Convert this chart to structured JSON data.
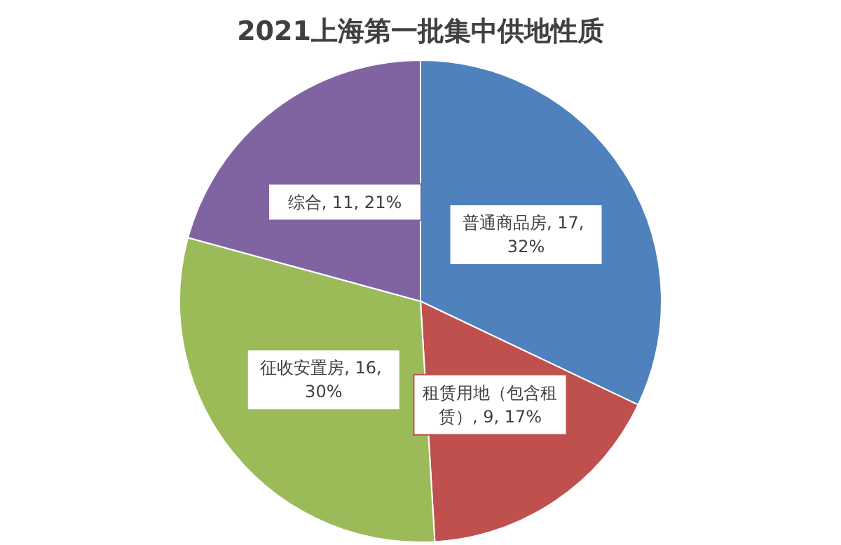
{
  "chart_data": {
    "type": "pie",
    "title": "2021上海第一批集中供地性质",
    "categories": [
      "普通商品房",
      "租赁用地（包含租赁）",
      "征收安置房",
      "综合"
    ],
    "values": [
      17,
      9,
      16,
      11
    ],
    "colors": [
      "#4f81bd",
      "#c0504d",
      "#9bbb59",
      "#8064a2"
    ],
    "value_labels": [
      "17, 32%",
      "9, 17%",
      "16, 30%",
      "11, 21%"
    ],
    "legend": false
  }
}
